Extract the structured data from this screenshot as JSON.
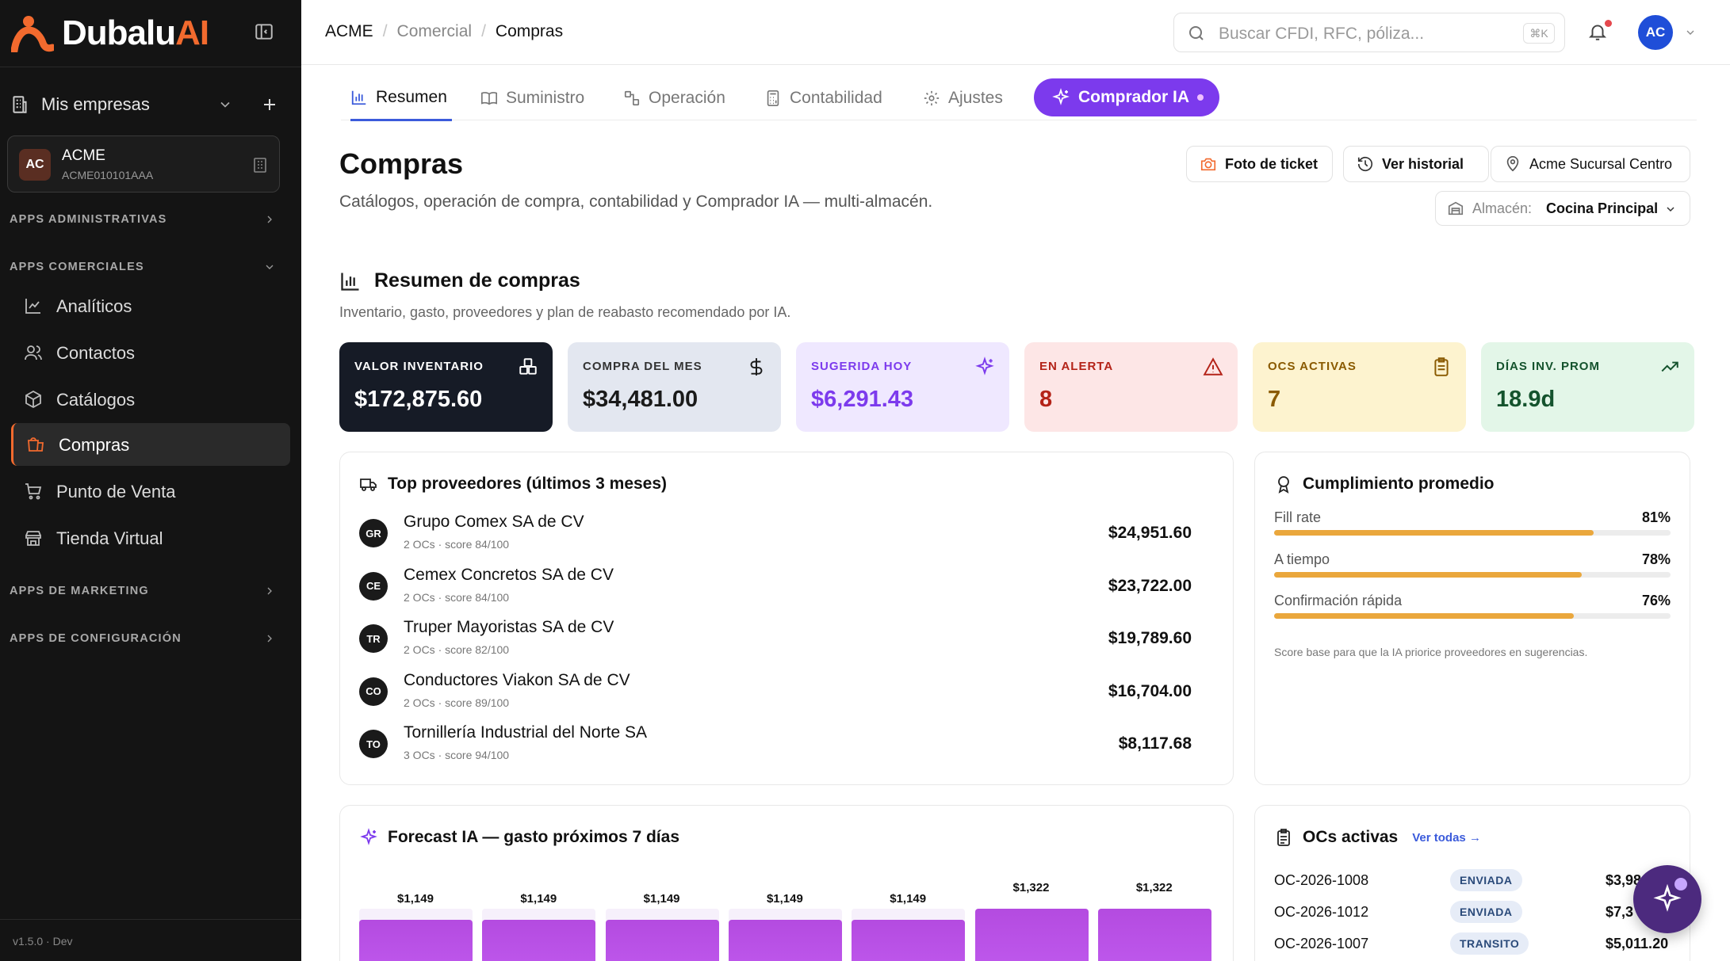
{
  "brand": {
    "name_main": "Dubalu",
    "name_accent": "AI"
  },
  "sidebar": {
    "empresas_label": "Mis empresas",
    "company": {
      "initials": "AC",
      "name": "ACME",
      "rfc": "ACME010101AAA"
    },
    "sections": {
      "admin": "APPS ADMINISTRATIVAS",
      "comerciales": "APPS COMERCIALES",
      "marketing": "APPS DE MARKETING",
      "config": "APPS DE CONFIGURACIÓN"
    },
    "items": [
      {
        "label": "Analíticos",
        "icon": "chart-line-icon"
      },
      {
        "label": "Contactos",
        "icon": "users-icon"
      },
      {
        "label": "Catálogos",
        "icon": "box-icon"
      },
      {
        "label": "Compras",
        "icon": "shopping-bag-icon",
        "active": true
      },
      {
        "label": "Punto de Venta",
        "icon": "cart-icon"
      },
      {
        "label": "Tienda Virtual",
        "icon": "store-icon"
      }
    ],
    "version": "v1.5.0 · Dev"
  },
  "topbar": {
    "breadcrumb": [
      "ACME",
      "Comercial",
      "Compras"
    ],
    "search_placeholder": "Buscar CFDI, RFC, póliza...",
    "search_shortcut": "⌘K",
    "user_initials": "AC"
  },
  "tabs": [
    {
      "label": "Resumen",
      "icon": "bar-chart-icon",
      "active": true
    },
    {
      "label": "Suministro",
      "icon": "book-icon"
    },
    {
      "label": "Operación",
      "icon": "workflow-icon"
    },
    {
      "label": "Contabilidad",
      "icon": "calculator-icon"
    },
    {
      "label": "Ajustes",
      "icon": "gear-icon"
    }
  ],
  "tab_ai": {
    "label": "Comprador IA"
  },
  "page": {
    "title": "Compras",
    "subtitle": "Catálogos, operación de compra, contabilidad y Comprador IA — multi-almacén.",
    "buttons": {
      "foto": "Foto de ticket",
      "historial": "Ver historial",
      "sucursal": "Acme Sucursal Centro"
    },
    "almacen_label": "Almacén:",
    "almacen_value": "Cocina Principal"
  },
  "resumen": {
    "title": "Resumen de compras",
    "subtitle": "Inventario, gasto, proveedores y plan de reabasto recomendado por IA."
  },
  "kpis": [
    {
      "label": "VALOR INVENTARIO",
      "value": "$172,875.60",
      "icon": "boxes-icon",
      "bg": "#161b26",
      "fg": "#ffffff",
      "lc": "#ffffff"
    },
    {
      "label": "COMPRA DEL MES",
      "value": "$34,481.00",
      "icon": "dollar-icon",
      "bg": "#e3e7f0",
      "fg": "#1a1a1a",
      "lc": "#333333"
    },
    {
      "label": "SUGERIDA HOY",
      "value": "$6,291.43",
      "icon": "sparkle-icon",
      "bg": "#efe8ff",
      "fg": "#7c3aed",
      "lc": "#7c3aed"
    },
    {
      "label": "EN ALERTA",
      "value": "8",
      "icon": "warning-icon",
      "bg": "#fde6e6",
      "fg": "#b42318",
      "lc": "#b42318"
    },
    {
      "label": "OCS ACTIVAS",
      "value": "7",
      "icon": "clipboard-icon",
      "bg": "#fdf3cf",
      "fg": "#8a5a00",
      "lc": "#8a5a00"
    },
    {
      "label": "DÍAS INV. PROM",
      "value": "18.9d",
      "icon": "trend-up-icon",
      "bg": "#e3f6e8",
      "fg": "#14532d",
      "lc": "#14532d"
    }
  ],
  "proveedores": {
    "title": "Top proveedores (últimos 3 meses)",
    "items": [
      {
        "initials": "GR",
        "name": "Grupo Comex SA de CV",
        "meta": "2 OCs · score 84/100",
        "value": "$24,951.60"
      },
      {
        "initials": "CE",
        "name": "Cemex Concretos SA de CV",
        "meta": "2 OCs · score 84/100",
        "value": "$23,722.00"
      },
      {
        "initials": "TR",
        "name": "Truper Mayoristas SA de CV",
        "meta": "2 OCs · score 82/100",
        "value": "$19,789.60"
      },
      {
        "initials": "CO",
        "name": "Conductores Viakon SA de CV",
        "meta": "2 OCs · score 89/100",
        "value": "$16,704.00"
      },
      {
        "initials": "TO",
        "name": "Tornillería Industrial del Norte SA",
        "meta": "3 OCs · score 94/100",
        "value": "$8,117.68"
      }
    ]
  },
  "cumplimiento": {
    "title": "Cumplimiento promedio",
    "metrics": [
      {
        "label": "Fill rate",
        "value": "81%",
        "pct": 81
      },
      {
        "label": "A tiempo",
        "value": "78%",
        "pct": 78
      },
      {
        "label": "Confirmación rápida",
        "value": "76%",
        "pct": 76
      }
    ],
    "note": "Score base para que la IA priorice proveedores en sugerencias."
  },
  "forecast": {
    "title": "Forecast IA — gasto próximos 7 días"
  },
  "chart_data": {
    "type": "bar",
    "title": "Forecast IA — gasto próximos 7 días",
    "values": [
      1149,
      1149,
      1149,
      1149,
      1149,
      1322,
      1322
    ],
    "labels": [
      "$1,149",
      "$1,149",
      "$1,149",
      "$1,149",
      "$1,149",
      "$1,322",
      "$1,322"
    ]
  },
  "ocs": {
    "title": "OCs activas",
    "link": "Ver todas →",
    "items": [
      {
        "id": "OC-2026-1008",
        "status": "ENVIADA",
        "value": "$3,98"
      },
      {
        "id": "OC-2026-1012",
        "status": "ENVIADA",
        "value": "$7,3"
      },
      {
        "id": "OC-2026-1007",
        "status": "TRANSITO",
        "value": "$5,011.20"
      }
    ]
  }
}
